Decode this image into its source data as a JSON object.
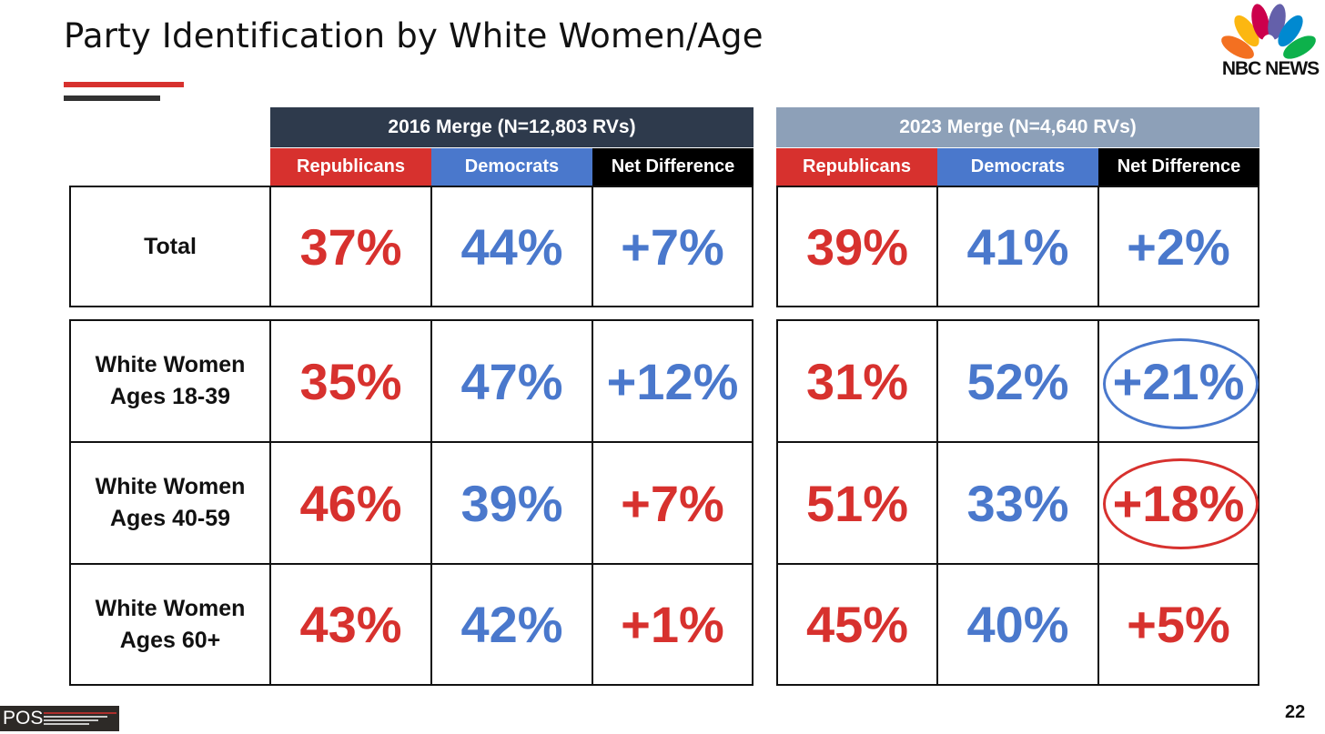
{
  "title": "Party Identification by White Women/Age",
  "logo": {
    "text": "NBC NEWS",
    "icon": "nbc-peacock-icon"
  },
  "footer": {
    "brand": "POS",
    "page": "22"
  },
  "colors": {
    "republican": "#d7312e",
    "democrat": "#4a78cc",
    "merge2016": "#2e3a4c",
    "merge2023": "#8da0b8",
    "net": "#000000"
  },
  "groups": [
    {
      "header": "2016 Merge (N=12,803 RVs)",
      "columns": [
        "Republicans",
        "Democrats",
        "Net Difference"
      ],
      "values": [
        [
          "37%",
          "44%",
          "+7%"
        ],
        [
          "35%",
          "47%",
          "+12%"
        ],
        [
          "46%",
          "39%",
          "+7%"
        ],
        [
          "43%",
          "42%",
          "+1%"
        ]
      ]
    },
    {
      "header": "2023 Merge (N=4,640 RVs)",
      "columns": [
        "Republicans",
        "Democrats",
        "Net Difference"
      ],
      "values": [
        [
          "39%",
          "41%",
          "+2%"
        ],
        [
          "31%",
          "52%",
          "+21%"
        ],
        [
          "51%",
          "33%",
          "+18%"
        ],
        [
          "45%",
          "40%",
          "+5%"
        ]
      ]
    }
  ],
  "rows": [
    {
      "label_line1": "Total",
      "label_line2": ""
    },
    {
      "label_line1": "White Women",
      "label_line2": "Ages 18-39"
    },
    {
      "label_line1": "White Women",
      "label_line2": "Ages 40-59"
    },
    {
      "label_line1": "White Women",
      "label_line2": "Ages 60+"
    }
  ]
}
